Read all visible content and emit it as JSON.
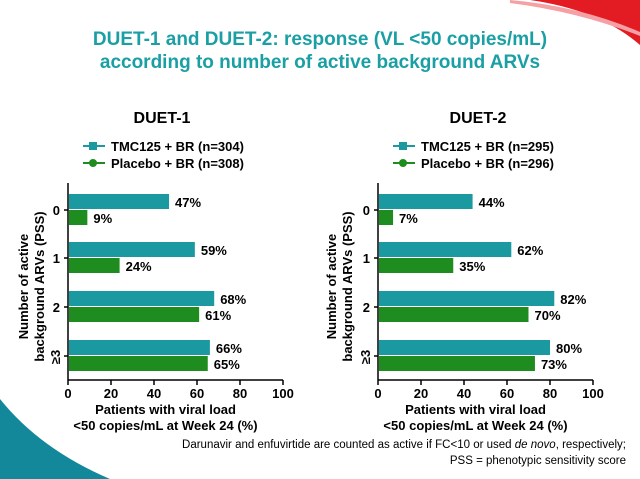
{
  "title_line1": "DUET-1 and DUET-2: response (VL <50 copies/mL)",
  "title_line2": "according to number of active background ARVs",
  "footnote": {
    "line1_a": "Darunavir and enfuvirtide are counted as active if FC<10 or used ",
    "line1_italic": "de novo",
    "line1_b": ", respectively;",
    "line2": "PSS = phenotypic sensitivity score"
  },
  "colors": {
    "tmc": "#1a9aa0",
    "placebo": "#1f8c1f",
    "title": "#1aa0a4",
    "accent_red": "#e31b23"
  },
  "chart_data": [
    {
      "type": "bar",
      "orientation": "horizontal",
      "title": "DUET-1",
      "categories": [
        "0",
        "1",
        "2",
        "≥3"
      ],
      "series": [
        {
          "name": "TMC125 + BR (n=304)",
          "values": [
            47,
            59,
            68,
            66
          ],
          "labels": [
            "47%",
            "59%",
            "68%",
            "66%"
          ]
        },
        {
          "name": "Placebo + BR (n=308)",
          "values": [
            9,
            24,
            61,
            65
          ],
          "labels": [
            "9%",
            "24%",
            "61%",
            "65%"
          ]
        }
      ],
      "ylabel": [
        "Number of active",
        "background ARVs (PSS)"
      ],
      "xlabel": [
        "Patients with viral load",
        "<50 copies/mL at Week 24 (%)"
      ],
      "xlim": [
        0,
        100
      ],
      "xticks": [
        "0",
        "20",
        "40",
        "60",
        "80",
        "100"
      ],
      "legend": "top"
    },
    {
      "type": "bar",
      "orientation": "horizontal",
      "title": "DUET-2",
      "categories": [
        "0",
        "1",
        "2",
        "≥3"
      ],
      "series": [
        {
          "name": "TMC125 + BR (n=295)",
          "values": [
            44,
            62,
            82,
            80
          ],
          "labels": [
            "44%",
            "62%",
            "82%",
            "80%"
          ]
        },
        {
          "name": "Placebo + BR (n=296)",
          "values": [
            7,
            35,
            70,
            73
          ],
          "labels": [
            "7%",
            "35%",
            "70%",
            "73%"
          ]
        }
      ],
      "ylabel": [
        "Number of active",
        "background ARVs (PSS)"
      ],
      "xlabel": [
        "Patients with viral load",
        "<50 copies/mL at Week 24 (%)"
      ],
      "xlim": [
        0,
        100
      ],
      "xticks": [
        "0",
        "20",
        "40",
        "60",
        "80",
        "100"
      ],
      "legend": "top"
    }
  ]
}
